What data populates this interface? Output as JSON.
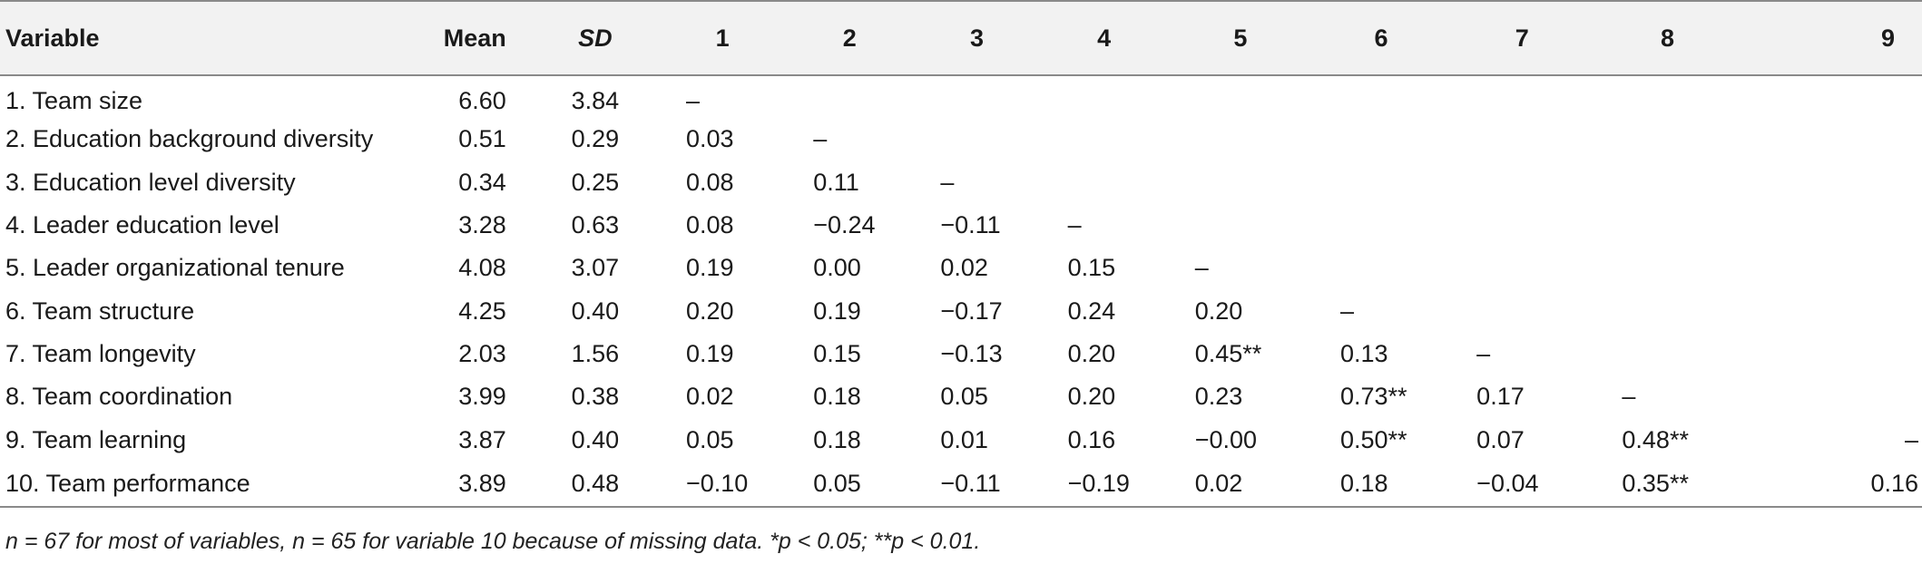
{
  "header": {
    "variable": "Variable",
    "mean": "Mean",
    "sd": "SD",
    "cols": [
      "1",
      "2",
      "3",
      "4",
      "5",
      "6",
      "7",
      "8",
      "9"
    ]
  },
  "rows": [
    {
      "name": "1. Team size",
      "mean": "6.60",
      "sd": "3.84",
      "c": [
        "–",
        "",
        "",
        "",
        "",
        "",
        "",
        "",
        ""
      ]
    },
    {
      "name": "2. Education background diversity",
      "mean": "0.51",
      "sd": "0.29",
      "c": [
        "0.03",
        "–",
        "",
        "",
        "",
        "",
        "",
        "",
        ""
      ]
    },
    {
      "name": "3. Education level diversity",
      "mean": "0.34",
      "sd": "0.25",
      "c": [
        "0.08",
        "0.11",
        "–",
        "",
        "",
        "",
        "",
        "",
        ""
      ]
    },
    {
      "name": "4. Leader education level",
      "mean": "3.28",
      "sd": "0.63",
      "c": [
        "0.08",
        "−0.24",
        "−0.11",
        "–",
        "",
        "",
        "",
        "",
        ""
      ]
    },
    {
      "name": "5. Leader organizational tenure",
      "mean": "4.08",
      "sd": "3.07",
      "c": [
        "0.19",
        "0.00",
        "0.02",
        "0.15",
        "–",
        "",
        "",
        "",
        ""
      ]
    },
    {
      "name": "6. Team structure",
      "mean": "4.25",
      "sd": "0.40",
      "c": [
        "0.20",
        "0.19",
        "−0.17",
        "0.24",
        "0.20",
        "–",
        "",
        "",
        ""
      ]
    },
    {
      "name": "7. Team longevity",
      "mean": "2.03",
      "sd": "1.56",
      "c": [
        "0.19",
        "0.15",
        "−0.13",
        "0.20",
        "0.45**",
        "0.13",
        "–",
        "",
        ""
      ]
    },
    {
      "name": "8. Team coordination",
      "mean": "3.99",
      "sd": "0.38",
      "c": [
        "0.02",
        "0.18",
        "0.05",
        "0.20",
        "0.23",
        "0.73**",
        "0.17",
        "–",
        ""
      ]
    },
    {
      "name": "9. Team learning",
      "mean": "3.87",
      "sd": "0.40",
      "c": [
        "0.05",
        "0.18",
        "0.01",
        "0.16",
        "−0.00",
        "0.50**",
        "0.07",
        "0.48**",
        "–"
      ]
    },
    {
      "name": "10. Team performance",
      "mean": "3.89",
      "sd": "0.48",
      "c": [
        "−0.10",
        "0.05",
        "−0.11",
        "−0.19",
        "0.02",
        "0.18",
        "−0.04",
        "0.35**",
        "0.16"
      ]
    }
  ],
  "note": "n = 67 for most of variables, n = 65 for variable 10 because of missing data. *p < 0.05; **p < 0.01."
}
